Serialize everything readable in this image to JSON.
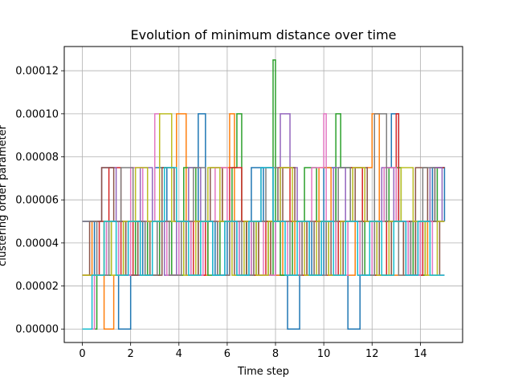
{
  "chart_data": {
    "type": "line",
    "title": "Evolution of minimum distance over time",
    "xlabel": "Time step",
    "ylabel": "clustering order parameter",
    "xlim": [
      -0.75,
      15.75
    ],
    "ylim": [
      -6.25e-06,
      0.00013125
    ],
    "xticks": [
      0,
      2,
      4,
      6,
      8,
      10,
      12,
      14
    ],
    "xtick_labels": [
      "0",
      "2",
      "4",
      "6",
      "8",
      "10",
      "12",
      "14"
    ],
    "yticks": [
      0,
      2e-05,
      4e-05,
      6e-05,
      8e-05,
      0.0001,
      0.00012
    ],
    "ytick_labels": [
      "0.00000",
      "0.00002",
      "0.00004",
      "0.00006",
      "0.00008",
      "0.00010",
      "0.00012"
    ],
    "grid": true,
    "step_style": "steps",
    "colors": [
      "#1f77b4",
      "#ff7f0e",
      "#2ca02c",
      "#d62728",
      "#9467bd",
      "#8c564b",
      "#e377c2",
      "#7f7f7f",
      "#bcbd22",
      "#17becf"
    ],
    "series": [
      {
        "x": [
          0,
          0.5,
          1,
          1.5,
          2,
          2.5,
          3,
          3.5,
          4,
          4.5,
          4.8,
          5.1,
          5.5,
          6,
          6.5,
          7,
          7.5,
          8,
          8.5,
          9,
          9.5,
          10,
          10.5,
          11,
          11.5,
          12,
          12.5,
          12.8,
          13.1,
          13.5,
          14,
          14.5,
          15
        ],
        "values": [
          5e-05,
          2.5e-05,
          5e-05,
          0,
          2.5e-05,
          5e-05,
          7.5e-05,
          2.5e-05,
          5e-05,
          2.5e-05,
          0.0001,
          5e-05,
          2.5e-05,
          5e-05,
          2.5e-05,
          7.5e-05,
          5e-05,
          2.5e-05,
          0,
          5e-05,
          2.5e-05,
          7.5e-05,
          5e-05,
          0,
          2.5e-05,
          5e-05,
          7.5e-05,
          0.0001,
          5e-05,
          2.5e-05,
          5e-05,
          7.5e-05,
          5e-05
        ]
      },
      {
        "x": [
          0,
          0.4,
          0.9,
          1.3,
          1.8,
          2.3,
          2.8,
          3.3,
          3.8,
          3.9,
          4.3,
          4.8,
          5.2,
          5.8,
          6.1,
          6.3,
          6.8,
          7.3,
          7.8,
          8.3,
          8.8,
          9.3,
          9.8,
          10.3,
          10.8,
          11.3,
          11.8,
          12.0,
          12.3,
          12.8,
          13.3,
          13.8,
          14.3,
          15
        ],
        "values": [
          2.5e-05,
          5e-05,
          0,
          2.5e-05,
          5e-05,
          2.5e-05,
          5e-05,
          7.5e-05,
          5e-05,
          0.0001,
          5e-05,
          2.5e-05,
          5e-05,
          7.5e-05,
          0.0001,
          5e-05,
          2.5e-05,
          5e-05,
          2.5e-05,
          5e-05,
          2.5e-05,
          5e-05,
          7.5e-05,
          5e-05,
          2.5e-05,
          5e-05,
          7.5e-05,
          0.0001,
          5e-05,
          2.5e-05,
          5e-05,
          2.5e-05,
          5e-05,
          5e-05
        ]
      },
      {
        "x": [
          0,
          0.6,
          1.2,
          1.7,
          2.2,
          2.7,
          3.2,
          3.7,
          4.2,
          4.7,
          5.2,
          5.7,
          6.2,
          6.4,
          6.6,
          6.8,
          7.2,
          7.7,
          7.9,
          8.0,
          8.2,
          8.7,
          9.2,
          9.7,
          10.2,
          10.5,
          10.7,
          11.2,
          11.7,
          12.2,
          12.7,
          13.2,
          13.7,
          14.2,
          14.7,
          15
        ],
        "values": [
          0,
          2.5e-05,
          5e-05,
          2.5e-05,
          5e-05,
          2.5e-05,
          5e-05,
          2.5e-05,
          7.5e-05,
          5e-05,
          2.5e-05,
          5e-05,
          7.5e-05,
          0.0001,
          5e-05,
          2.5e-05,
          5e-05,
          2.5e-05,
          0.000125,
          5e-05,
          2.5e-05,
          5e-05,
          7.5e-05,
          5e-05,
          2.5e-05,
          0.0001,
          7.5e-05,
          5e-05,
          2.5e-05,
          5e-05,
          7.5e-05,
          5e-05,
          2.5e-05,
          5e-05,
          7.5e-05,
          7.5e-05
        ]
      },
      {
        "x": [
          0,
          0.7,
          1.1,
          1.6,
          2.1,
          2.6,
          3.1,
          3.6,
          4.1,
          4.6,
          5.1,
          5.6,
          6.1,
          6.6,
          7.1,
          7.6,
          8.1,
          8.6,
          9.1,
          9.6,
          10.1,
          10.6,
          11.1,
          11.6,
          12.1,
          12.6,
          13.0,
          13.1,
          13.6,
          14.1,
          14.6,
          15
        ],
        "values": [
          2.5e-05,
          5e-05,
          7.5e-05,
          2.5e-05,
          5e-05,
          2.5e-05,
          5e-05,
          2.5e-05,
          5e-05,
          2.5e-05,
          5e-05,
          2.5e-05,
          7.5e-05,
          5e-05,
          2.5e-05,
          5e-05,
          7.5e-05,
          5e-05,
          2.5e-05,
          5e-05,
          2.5e-05,
          5e-05,
          7.5e-05,
          5e-05,
          2.5e-05,
          5e-05,
          0.0001,
          5e-05,
          2.5e-05,
          5e-05,
          7.5e-05,
          7.5e-05
        ]
      },
      {
        "x": [
          0,
          0.8,
          1.4,
          1.9,
          2.4,
          2.9,
          3.4,
          3.9,
          4.4,
          4.9,
          5.4,
          5.9,
          6.4,
          6.9,
          7.4,
          7.9,
          8.2,
          8.6,
          8.9,
          9.4,
          9.9,
          10.4,
          10.9,
          11.4,
          11.9,
          12.4,
          12.9,
          13.4,
          13.9,
          14.4,
          14.9,
          15
        ],
        "values": [
          5e-05,
          7.5e-05,
          5e-05,
          2.5e-05,
          7.5e-05,
          5e-05,
          2.5e-05,
          5e-05,
          7.5e-05,
          5e-05,
          2.5e-05,
          5e-05,
          2.5e-05,
          5e-05,
          7.5e-05,
          5e-05,
          0.0001,
          7.5e-05,
          5e-05,
          2.5e-05,
          5e-05,
          7.5e-05,
          5e-05,
          2.5e-05,
          5e-05,
          7.5e-05,
          5e-05,
          2.5e-05,
          5e-05,
          7.5e-05,
          5e-05,
          5e-05
        ]
      },
      {
        "x": [
          0,
          0.3,
          0.8,
          1.3,
          1.8,
          2.3,
          2.8,
          3.3,
          3.8,
          4.3,
          4.8,
          5.3,
          5.8,
          6.3,
          6.8,
          7.3,
          7.8,
          8.3,
          8.8,
          9.3,
          9.8,
          10.3,
          10.8,
          11.3,
          11.8,
          12.3,
          12.8,
          13.3,
          13.8,
          14.3,
          14.8,
          15
        ],
        "values": [
          2.5e-05,
          5e-05,
          7.5e-05,
          5e-05,
          2.5e-05,
          5e-05,
          2.5e-05,
          7.5e-05,
          5e-05,
          2.5e-05,
          5e-05,
          7.5e-05,
          5e-05,
          2.5e-05,
          5e-05,
          2.5e-05,
          5e-05,
          7.5e-05,
          5e-05,
          2.5e-05,
          5e-05,
          2.5e-05,
          5e-05,
          7.5e-05,
          5e-05,
          2.5e-05,
          5e-05,
          2.5e-05,
          7.5e-05,
          5e-05,
          2.5e-05,
          2.5e-05
        ]
      },
      {
        "x": [
          0,
          0.5,
          1.0,
          1.5,
          2.0,
          2.5,
          3.0,
          3.2,
          3.5,
          4.0,
          4.5,
          5.0,
          5.5,
          6.0,
          6.5,
          7.0,
          7.5,
          8.0,
          8.5,
          9.0,
          9.5,
          10.0,
          10.1,
          10.5,
          11.0,
          11.5,
          12.0,
          12.5,
          13.0,
          13.5,
          14.0,
          14.5,
          15
        ],
        "values": [
          0,
          2.5e-05,
          5e-05,
          2.5e-05,
          7.5e-05,
          5e-05,
          0.0001,
          5e-05,
          2.5e-05,
          5e-05,
          2.5e-05,
          5e-05,
          7.5e-05,
          5e-05,
          2.5e-05,
          5e-05,
          2.5e-05,
          5e-05,
          2.5e-05,
          5e-05,
          7.5e-05,
          0.0001,
          5e-05,
          2.5e-05,
          5e-05,
          2.5e-05,
          5e-05,
          7.5e-05,
          5e-05,
          2.5e-05,
          5e-05,
          2.5e-05,
          2.5e-05
        ]
      },
      {
        "x": [
          0,
          0.6,
          1.1,
          1.6,
          2.1,
          2.6,
          3.1,
          3.6,
          4.1,
          4.6,
          5.1,
          5.6,
          6.1,
          6.6,
          7.1,
          7.6,
          8.1,
          8.6,
          9.1,
          9.6,
          10.1,
          10.6,
          11.1,
          11.6,
          12.1,
          12.6,
          13.1,
          13.6,
          14.1,
          14.6,
          15
        ],
        "values": [
          5e-05,
          2.5e-05,
          5e-05,
          7.5e-05,
          5e-05,
          2.5e-05,
          5e-05,
          2.5e-05,
          5e-05,
          7.5e-05,
          5e-05,
          2.5e-05,
          5e-05,
          2.5e-05,
          5e-05,
          7.5e-05,
          5e-05,
          2.5e-05,
          5e-05,
          2.5e-05,
          5e-05,
          7.5e-05,
          5e-05,
          2.5e-05,
          0.0001,
          5e-05,
          2.5e-05,
          5e-05,
          7.5e-05,
          5e-05,
          5e-05
        ]
      },
      {
        "x": [
          0,
          0.9,
          1.2,
          1.7,
          2.2,
          2.7,
          3.2,
          3.7,
          4.2,
          4.7,
          5.2,
          5.7,
          6.2,
          6.7,
          7.2,
          7.7,
          8.2,
          8.7,
          9.2,
          9.7,
          10.2,
          10.7,
          11.2,
          11.7,
          12.2,
          12.7,
          13.2,
          13.7,
          14.2,
          14.7,
          15
        ],
        "values": [
          2.5e-05,
          5e-05,
          2.5e-05,
          5e-05,
          7.5e-05,
          5e-05,
          0.0001,
          5e-05,
          2.5e-05,
          5e-05,
          7.5e-05,
          5e-05,
          2.5e-05,
          5e-05,
          2.5e-05,
          5e-05,
          7.5e-05,
          5e-05,
          2.5e-05,
          5e-05,
          2.5e-05,
          5e-05,
          7.5e-05,
          5e-05,
          2.5e-05,
          5e-05,
          7.5e-05,
          5e-05,
          2.5e-05,
          5e-05,
          5e-05
        ]
      },
      {
        "x": [
          0,
          0.4,
          0.9,
          1.4,
          1.9,
          2.4,
          2.9,
          3.4,
          3.9,
          4.4,
          4.9,
          5.4,
          5.9,
          6.4,
          6.9,
          7.4,
          7.9,
          8.4,
          8.9,
          9.4,
          9.9,
          10.4,
          10.9,
          11.4,
          11.9,
          12.4,
          12.9,
          13.4,
          13.9,
          14.4,
          14.9,
          15
        ],
        "values": [
          0,
          2.5e-05,
          5e-05,
          2.5e-05,
          5e-05,
          2.5e-05,
          5e-05,
          7.5e-05,
          5e-05,
          2.5e-05,
          5e-05,
          2.5e-05,
          5e-05,
          2.5e-05,
          5e-05,
          7.5e-05,
          5e-05,
          2.5e-05,
          5e-05,
          2.5e-05,
          5e-05,
          2.5e-05,
          5e-05,
          2.5e-05,
          5e-05,
          2.5e-05,
          5e-05,
          2.5e-05,
          5e-05,
          2.5e-05,
          2.5e-05,
          2.5e-05
        ]
      }
    ]
  }
}
